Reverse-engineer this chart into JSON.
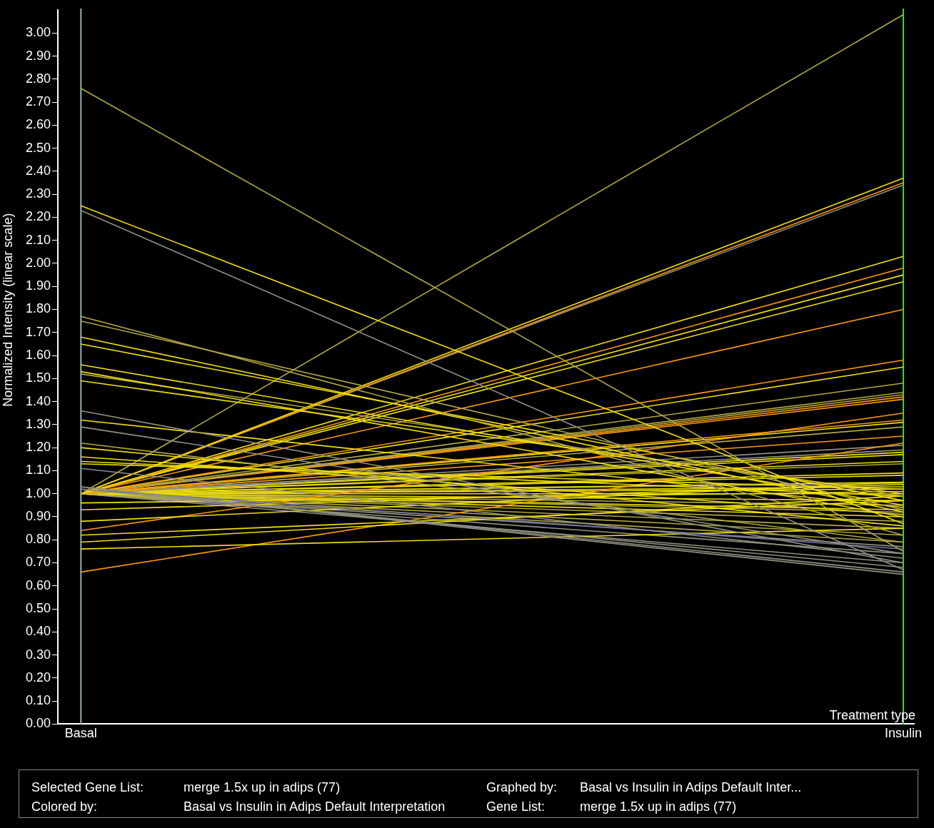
{
  "chart_data": {
    "type": "line",
    "xlabel": "Treatment type",
    "ylabel": "Normalized Intensity (linear scale)",
    "categories": [
      "Basal",
      "Insulin"
    ],
    "ylim": [
      0,
      3.1
    ],
    "yticks": [
      {
        "value": 0,
        "label": "0.00"
      },
      {
        "value": 0.1,
        "label": "0.10"
      },
      {
        "value": 0.2,
        "label": "0.20"
      },
      {
        "value": 0.3,
        "label": "0.30"
      },
      {
        "value": 0.4,
        "label": "0.40"
      },
      {
        "value": 0.5,
        "label": "0.50"
      },
      {
        "value": 0.6,
        "label": "0.60"
      },
      {
        "value": 0.7,
        "label": "0.70"
      },
      {
        "value": 0.8,
        "label": "0.80"
      },
      {
        "value": 0.9,
        "label": "0.90"
      },
      {
        "value": 1,
        "label": "1.00"
      },
      {
        "value": 1.1,
        "label": "1.10"
      },
      {
        "value": 1.2,
        "label": "1.20"
      },
      {
        "value": 1.3,
        "label": "1.30"
      },
      {
        "value": 1.4,
        "label": "1.40"
      },
      {
        "value": 1.5,
        "label": "1.50"
      },
      {
        "value": 1.6,
        "label": "1.60"
      },
      {
        "value": 1.7,
        "label": "1.70"
      },
      {
        "value": 1.8,
        "label": "1.80"
      },
      {
        "value": 1.9,
        "label": "1.90"
      },
      {
        "value": 2,
        "label": "2.00"
      },
      {
        "value": 2.1,
        "label": "2.10"
      },
      {
        "value": 2.2,
        "label": "2.20"
      },
      {
        "value": 2.3,
        "label": "2.30"
      },
      {
        "value": 2.4,
        "label": "2.40"
      },
      {
        "value": 2.5,
        "label": "2.50"
      },
      {
        "value": 2.6,
        "label": "2.60"
      },
      {
        "value": 2.7,
        "label": "2.70"
      },
      {
        "value": 2.8,
        "label": "2.80"
      },
      {
        "value": 2.9,
        "label": "2.90"
      },
      {
        "value": 3,
        "label": "3.00"
      }
    ],
    "grid": false,
    "legend": false,
    "marker": "none",
    "line_style": "solid",
    "ref_lines": [
      {
        "axis": "x",
        "value": "Basal",
        "color": "#8fb0b0"
      },
      {
        "axis": "x",
        "value": "Insulin",
        "color": "#00ff00"
      }
    ],
    "annotations": [
      "Selected Gene List:",
      "merge 1.5x up in adips (77)",
      "Graphed by:",
      "Basal vs Insulin in Adips Default Inter...",
      "Colored by:",
      "Basal vs Insulin in Adips Default Interpretation",
      "Gene List:",
      "merge 1.5x up in adips (77)"
    ],
    "series": [
      {
        "color": "#b0a840",
        "values": [
          2.76,
          0.75
        ]
      },
      {
        "color": "#f0e000",
        "values": [
          2.25,
          0.87
        ]
      },
      {
        "color": "#909080",
        "values": [
          2.23,
          0.67
        ]
      },
      {
        "color": "#b0a840",
        "values": [
          1.77,
          0.82
        ]
      },
      {
        "color": "#b0a840",
        "values": [
          1.75,
          0.93
        ]
      },
      {
        "color": "#f0e000",
        "values": [
          1.68,
          0.92
        ]
      },
      {
        "color": "#f0e000",
        "values": [
          1.65,
          0.97
        ]
      },
      {
        "color": "#f0e000",
        "values": [
          1.56,
          0.95
        ]
      },
      {
        "color": "#f0e000",
        "values": [
          1.53,
          0.9
        ]
      },
      {
        "color": "#b0a840",
        "values": [
          1.52,
          0.99
        ]
      },
      {
        "color": "#f0e000",
        "values": [
          1.49,
          1.0
        ]
      },
      {
        "color": "#909080",
        "values": [
          1.36,
          0.7
        ]
      },
      {
        "color": "#f0e000",
        "values": [
          1.32,
          0.94
        ]
      },
      {
        "color": "#909080",
        "values": [
          1.29,
          0.74
        ]
      },
      {
        "color": "#b0a840",
        "values": [
          1.22,
          0.79
        ]
      },
      {
        "color": "#f0e000",
        "values": [
          1.2,
          0.86
        ]
      },
      {
        "color": "#f0e000",
        "values": [
          1.16,
          0.91
        ]
      },
      {
        "color": "#f0e000",
        "values": [
          1.14,
          0.99
        ]
      },
      {
        "color": "#f0e000",
        "values": [
          1.13,
          1.02
        ]
      },
      {
        "color": "#909080",
        "values": [
          1.11,
          0.72
        ]
      },
      {
        "color": "#909080",
        "values": [
          1.03,
          0.66
        ]
      },
      {
        "color": "#909080",
        "values": [
          1.03,
          0.65
        ]
      },
      {
        "color": "#909080",
        "values": [
          1.02,
          0.68
        ]
      },
      {
        "color": "#7070a0",
        "values": [
          1.02,
          0.76
        ]
      },
      {
        "color": "#f0e000",
        "values": [
          0.96,
          1.01
        ]
      },
      {
        "color": "#f0e000",
        "values": [
          0.93,
          1.04
        ]
      },
      {
        "color": "#f0e000",
        "values": [
          0.88,
          1.05
        ]
      },
      {
        "color": "#ff9900",
        "values": [
          0.84,
          1.35
        ]
      },
      {
        "color": "#f0e000",
        "values": [
          0.82,
          0.97
        ]
      },
      {
        "color": "#f0e000",
        "values": [
          0.79,
          0.99
        ]
      },
      {
        "color": "#f0e000",
        "values": [
          0.76,
          0.85
        ]
      },
      {
        "color": "#ff9900",
        "values": [
          0.66,
          1.22
        ]
      },
      {
        "color": "#b0a840",
        "values": [
          1.0,
          3.08
        ]
      },
      {
        "color": "#f0e000",
        "values": [
          1.0,
          2.37
        ]
      },
      {
        "color": "#ff9900",
        "values": [
          1.0,
          2.35
        ]
      },
      {
        "color": "#909080",
        "values": [
          1.0,
          2.34
        ]
      },
      {
        "color": "#f0e000",
        "values": [
          1.0,
          2.03
        ]
      },
      {
        "color": "#ff9900",
        "values": [
          1.0,
          1.98
        ]
      },
      {
        "color": "#f0e000",
        "values": [
          1.0,
          1.95
        ]
      },
      {
        "color": "#f0e000",
        "values": [
          1.0,
          1.92
        ]
      },
      {
        "color": "#ff9900",
        "values": [
          1.0,
          1.8
        ]
      },
      {
        "color": "#ff9900",
        "values": [
          1.0,
          1.58
        ]
      },
      {
        "color": "#f0e000",
        "values": [
          1.0,
          1.55
        ]
      },
      {
        "color": "#b0a840",
        "values": [
          1.0,
          1.48
        ]
      },
      {
        "color": "#b0a840",
        "values": [
          1.0,
          1.44
        ]
      },
      {
        "color": "#b0a840",
        "values": [
          1.0,
          1.43
        ]
      },
      {
        "color": "#ff9900",
        "values": [
          1.0,
          1.42
        ]
      },
      {
        "color": "#ff9900",
        "values": [
          1.0,
          1.41
        ]
      },
      {
        "color": "#ff9900",
        "values": [
          1.0,
          1.32
        ]
      },
      {
        "color": "#f0e000",
        "values": [
          1.0,
          1.31
        ]
      },
      {
        "color": "#b0a840",
        "values": [
          1.0,
          1.29
        ]
      },
      {
        "color": "#ff9900",
        "values": [
          1.0,
          1.25
        ]
      },
      {
        "color": "#909080",
        "values": [
          1.0,
          1.21
        ]
      },
      {
        "color": "#909080",
        "values": [
          1.0,
          1.19
        ]
      },
      {
        "color": "#f0e000",
        "values": [
          1.0,
          1.18
        ]
      },
      {
        "color": "#f0e000",
        "values": [
          1.0,
          1.17
        ]
      },
      {
        "color": "#f0e000",
        "values": [
          1.0,
          1.14
        ]
      },
      {
        "color": "#b0a840",
        "values": [
          1.0,
          1.13
        ]
      },
      {
        "color": "#f0e000",
        "values": [
          1.0,
          1.09
        ]
      },
      {
        "color": "#f0e000",
        "values": [
          1.0,
          1.08
        ]
      },
      {
        "color": "#f0e000",
        "values": [
          1.0,
          1.05
        ]
      },
      {
        "color": "#7070a0",
        "values": [
          1.0,
          1.045
        ]
      },
      {
        "color": "#f0e000",
        "values": [
          1.0,
          1.03
        ]
      },
      {
        "color": "#f0e000",
        "values": [
          1.0,
          1.02
        ]
      },
      {
        "color": "#f0e000",
        "values": [
          1.0,
          1.0
        ]
      },
      {
        "color": "#f0e000",
        "values": [
          1.0,
          0.97
        ]
      },
      {
        "color": "#b0a840",
        "values": [
          1.0,
          0.95
        ]
      },
      {
        "color": "#f0e000",
        "values": [
          1.0,
          0.93
        ]
      },
      {
        "color": "#b0a840",
        "values": [
          1.0,
          0.92
        ]
      },
      {
        "color": "#f0e000",
        "values": [
          1.0,
          0.9
        ]
      },
      {
        "color": "#b0a840",
        "values": [
          1.0,
          0.88
        ]
      },
      {
        "color": "#b0a840",
        "values": [
          1.0,
          0.85
        ]
      },
      {
        "color": "#b0a840",
        "values": [
          1.0,
          0.82
        ]
      },
      {
        "color": "#b0a840",
        "values": [
          1.0,
          0.79
        ]
      },
      {
        "color": "#909080",
        "values": [
          1.0,
          0.77
        ]
      },
      {
        "color": "#909080",
        "values": [
          1.0,
          0.74
        ]
      },
      {
        "color": "#909080",
        "values": [
          1.0,
          0.7
        ]
      }
    ]
  }
}
